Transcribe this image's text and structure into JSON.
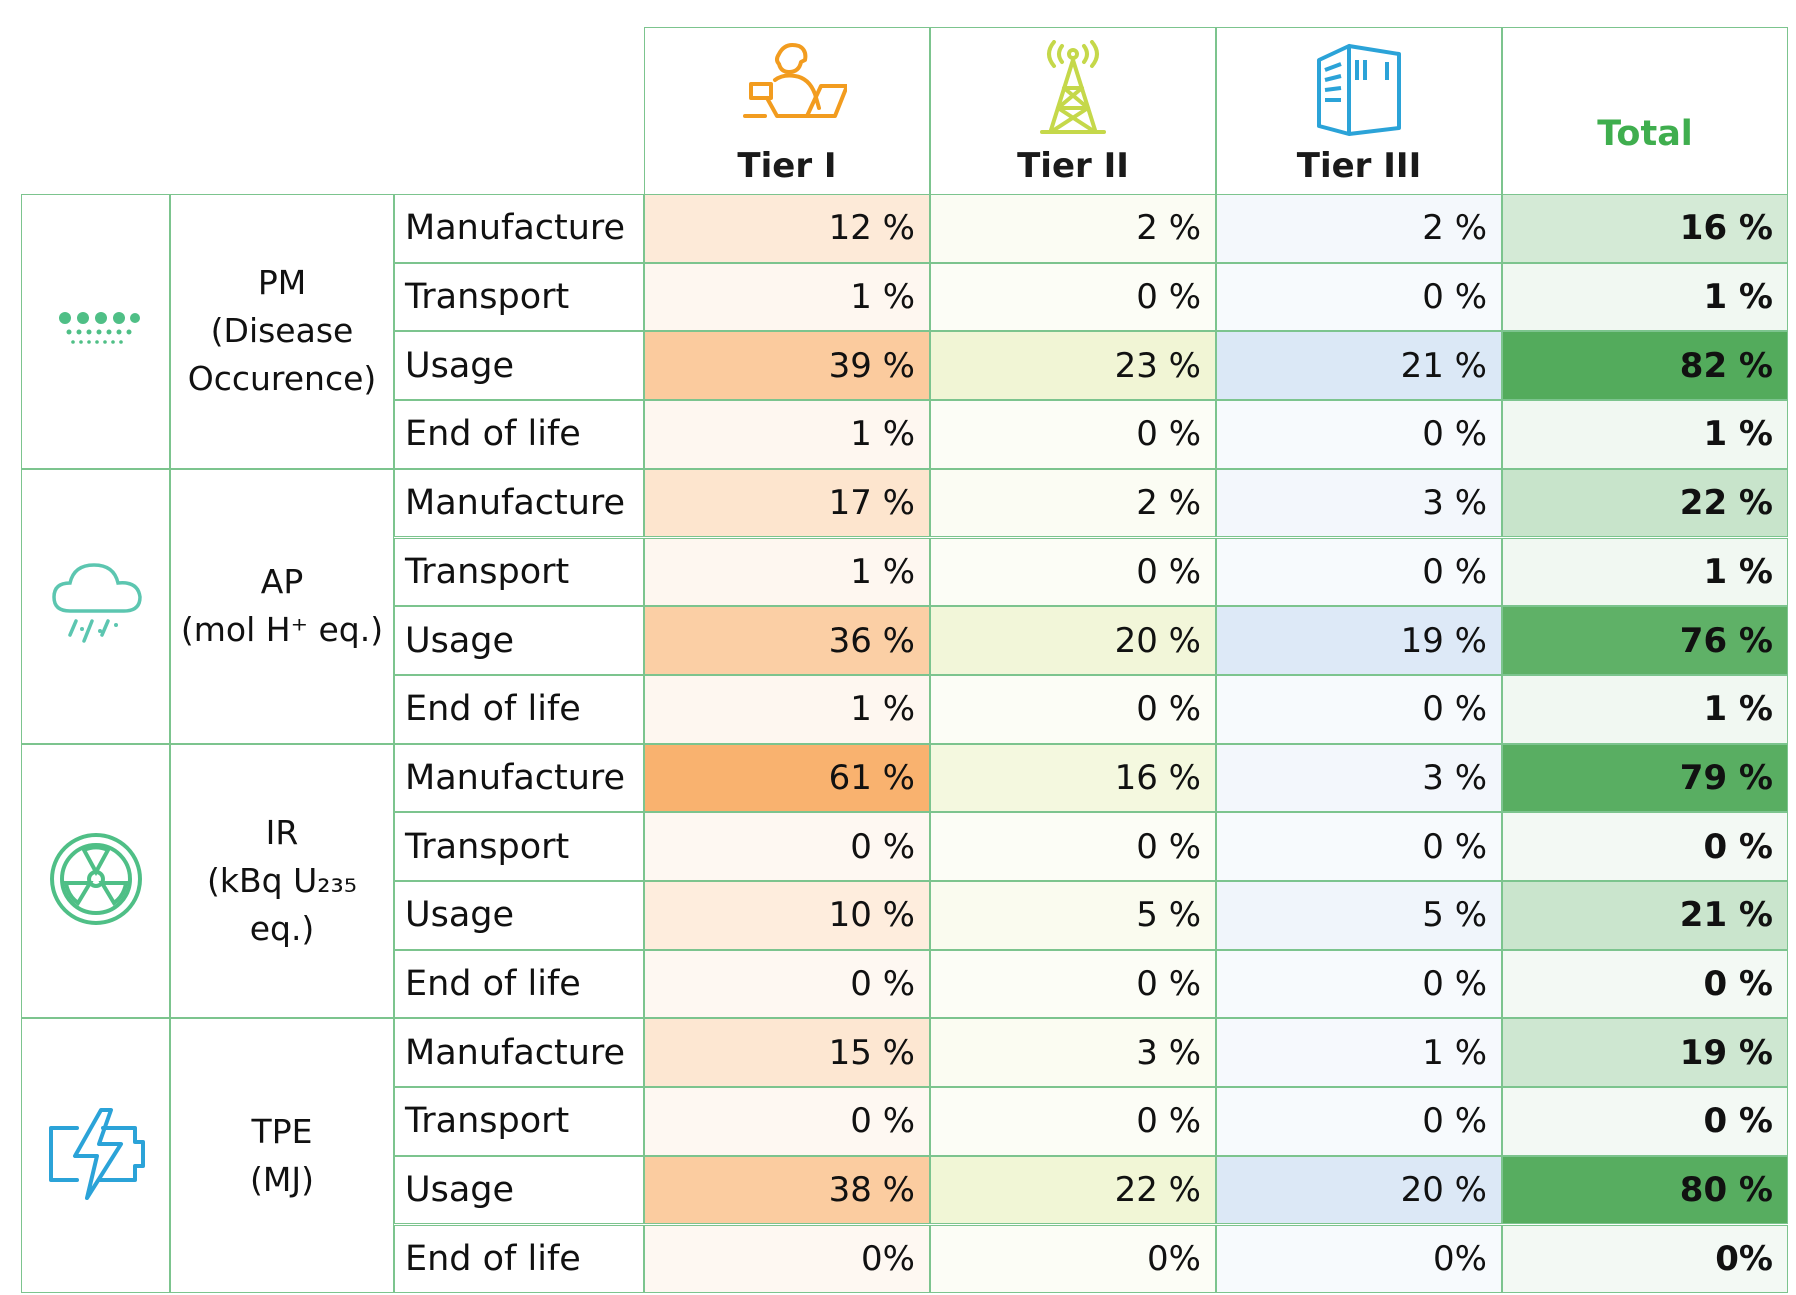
{
  "headers": {
    "tier1": "Tier I",
    "tier2": "Tier II",
    "tier3": "Tier III",
    "total": "Total"
  },
  "colors": {
    "grid": "#7cc48e",
    "total_text": "#3fae4e",
    "tier1_icon": "#f29c1f",
    "tier2_icon": "#c5d84a",
    "tier3_icon": "#2ba3d8",
    "category_icon_green": "#4fbf86",
    "category_icon_teal": "#5cc6b0",
    "category_icon_blue": "#2ba3d8"
  },
  "groups": [
    {
      "icon": "particulate-matter-icon",
      "name_lines": [
        "PM",
        "(Disease",
        "Occurence)"
      ],
      "rows": [
        {
          "stage": "Manufacture",
          "t1": "12 %",
          "t2": "2 %",
          "t3": "2 %",
          "total": "16 %",
          "shade": [
            0.12,
            0.02,
            0.02,
            0.16
          ]
        },
        {
          "stage": "Transport",
          "t1": "1 %",
          "t2": "0 %",
          "t3": "0 %",
          "total": "1 %",
          "shade": [
            0.01,
            0.0,
            0.0,
            0.01
          ]
        },
        {
          "stage": "Usage",
          "t1": "39 %",
          "t2": "23 %",
          "t3": "21 %",
          "total": "82 %",
          "shade": [
            0.39,
            0.23,
            0.21,
            0.82
          ]
        },
        {
          "stage": "End of life",
          "t1": "1 %",
          "t2": "0 %",
          "t3": "0 %",
          "total": "1 %",
          "shade": [
            0.01,
            0.0,
            0.0,
            0.01
          ]
        }
      ]
    },
    {
      "icon": "acid-rain-cloud-icon",
      "name_lines": [
        "AP",
        "(mol H⁺ eq.)"
      ],
      "rows": [
        {
          "stage": "Manufacture",
          "t1": "17 %",
          "t2": "2 %",
          "t3": "3 %",
          "total": "22 %",
          "shade": [
            0.17,
            0.02,
            0.03,
            0.22
          ]
        },
        {
          "stage": "Transport",
          "t1": "1 %",
          "t2": "0 %",
          "t3": "0 %",
          "total": "1 %",
          "shade": [
            0.01,
            0.0,
            0.0,
            0.01
          ]
        },
        {
          "stage": "Usage",
          "t1": "36 %",
          "t2": "20 %",
          "t3": "19 %",
          "total": "76 %",
          "shade": [
            0.36,
            0.2,
            0.19,
            0.76
          ]
        },
        {
          "stage": "End of life",
          "t1": "1 %",
          "t2": "0 %",
          "t3": "0 %",
          "total": "1 %",
          "shade": [
            0.01,
            0.0,
            0.0,
            0.01
          ]
        }
      ]
    },
    {
      "icon": "radiation-icon",
      "name_lines": [
        "IR",
        "(kBq U₂₃₅",
        "eq.)"
      ],
      "rows": [
        {
          "stage": "Manufacture",
          "t1": "61 %",
          "t2": "16 %",
          "t3": "3 %",
          "total": "79 %",
          "shade": [
            0.61,
            0.16,
            0.03,
            0.79
          ]
        },
        {
          "stage": "Transport",
          "t1": "0 %",
          "t2": "0 %",
          "t3": "0 %",
          "total": "0 %",
          "shade": [
            0.0,
            0.0,
            0.0,
            0.0
          ]
        },
        {
          "stage": "Usage",
          "t1": "10 %",
          "t2": "5 %",
          "t3": "5 %",
          "total": "21 %",
          "shade": [
            0.1,
            0.05,
            0.05,
            0.21
          ]
        },
        {
          "stage": "End of life",
          "t1": "0 %",
          "t2": "0 %",
          "t3": "0 %",
          "total": "0 %",
          "shade": [
            0.0,
            0.0,
            0.0,
            0.0
          ]
        }
      ]
    },
    {
      "icon": "battery-energy-icon",
      "name_lines": [
        "TPE",
        "(MJ)"
      ],
      "rows": [
        {
          "stage": "Manufacture",
          "t1": "15 %",
          "t2": "3 %",
          "t3": "1 %",
          "total": "19 %",
          "shade": [
            0.15,
            0.03,
            0.01,
            0.19
          ]
        },
        {
          "stage": "Transport",
          "t1": "0 %",
          "t2": "0 %",
          "t3": "0 %",
          "total": "0 %",
          "shade": [
            0.0,
            0.0,
            0.0,
            0.0
          ]
        },
        {
          "stage": "Usage",
          "t1": "38 %",
          "t2": "22 %",
          "t3": "20 %",
          "total": "80 %",
          "shade": [
            0.38,
            0.22,
            0.2,
            0.8
          ]
        },
        {
          "stage": "End of life",
          "t1": "0%",
          "t2": "0%",
          "t3": "0%",
          "total": "0%",
          "shade": [
            0.0,
            0.0,
            0.0,
            0.0
          ]
        }
      ]
    }
  ]
}
